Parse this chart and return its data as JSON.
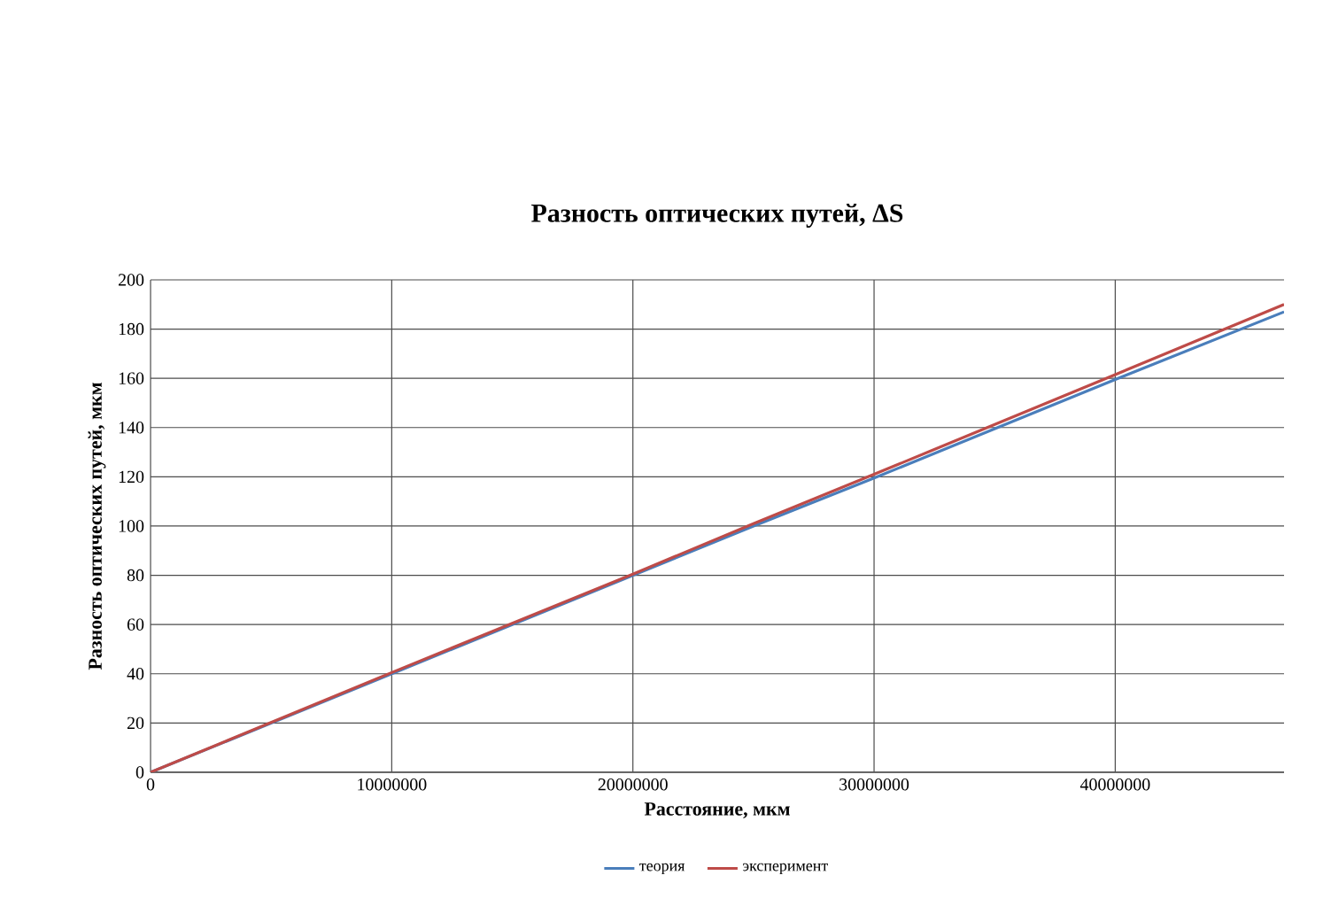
{
  "chart_data": {
    "type": "line",
    "title": "Разность оптических путей, ΔS",
    "xlabel": "Расстояние, мкм",
    "ylabel": "Разность оптических путей, мкм",
    "xlim": [
      0,
      47000000
    ],
    "xticks": [
      0,
      10000000,
      20000000,
      30000000,
      40000000
    ],
    "ylim": [
      0,
      200
    ],
    "yticks": [
      0,
      20,
      40,
      60,
      80,
      100,
      120,
      140,
      160,
      180,
      200
    ],
    "grid": true,
    "legend": "bottom",
    "marker": "none",
    "line_style": "solid",
    "series": [
      {
        "name": "теория",
        "color": "#4a7ebb",
        "x": [
          0,
          10000000,
          20000000,
          25000000,
          30000000,
          40000000,
          47000000
        ],
        "values": [
          0,
          40,
          80,
          100,
          119.5,
          159.5,
          187
        ]
      },
      {
        "name": "эксперимент",
        "color": "#be4b48",
        "x": [
          0,
          10000000,
          20000000,
          25000000,
          30000000,
          40000000,
          47000000
        ],
        "values": [
          0,
          40.5,
          80.5,
          101,
          121,
          161.5,
          190
        ]
      }
    ]
  }
}
